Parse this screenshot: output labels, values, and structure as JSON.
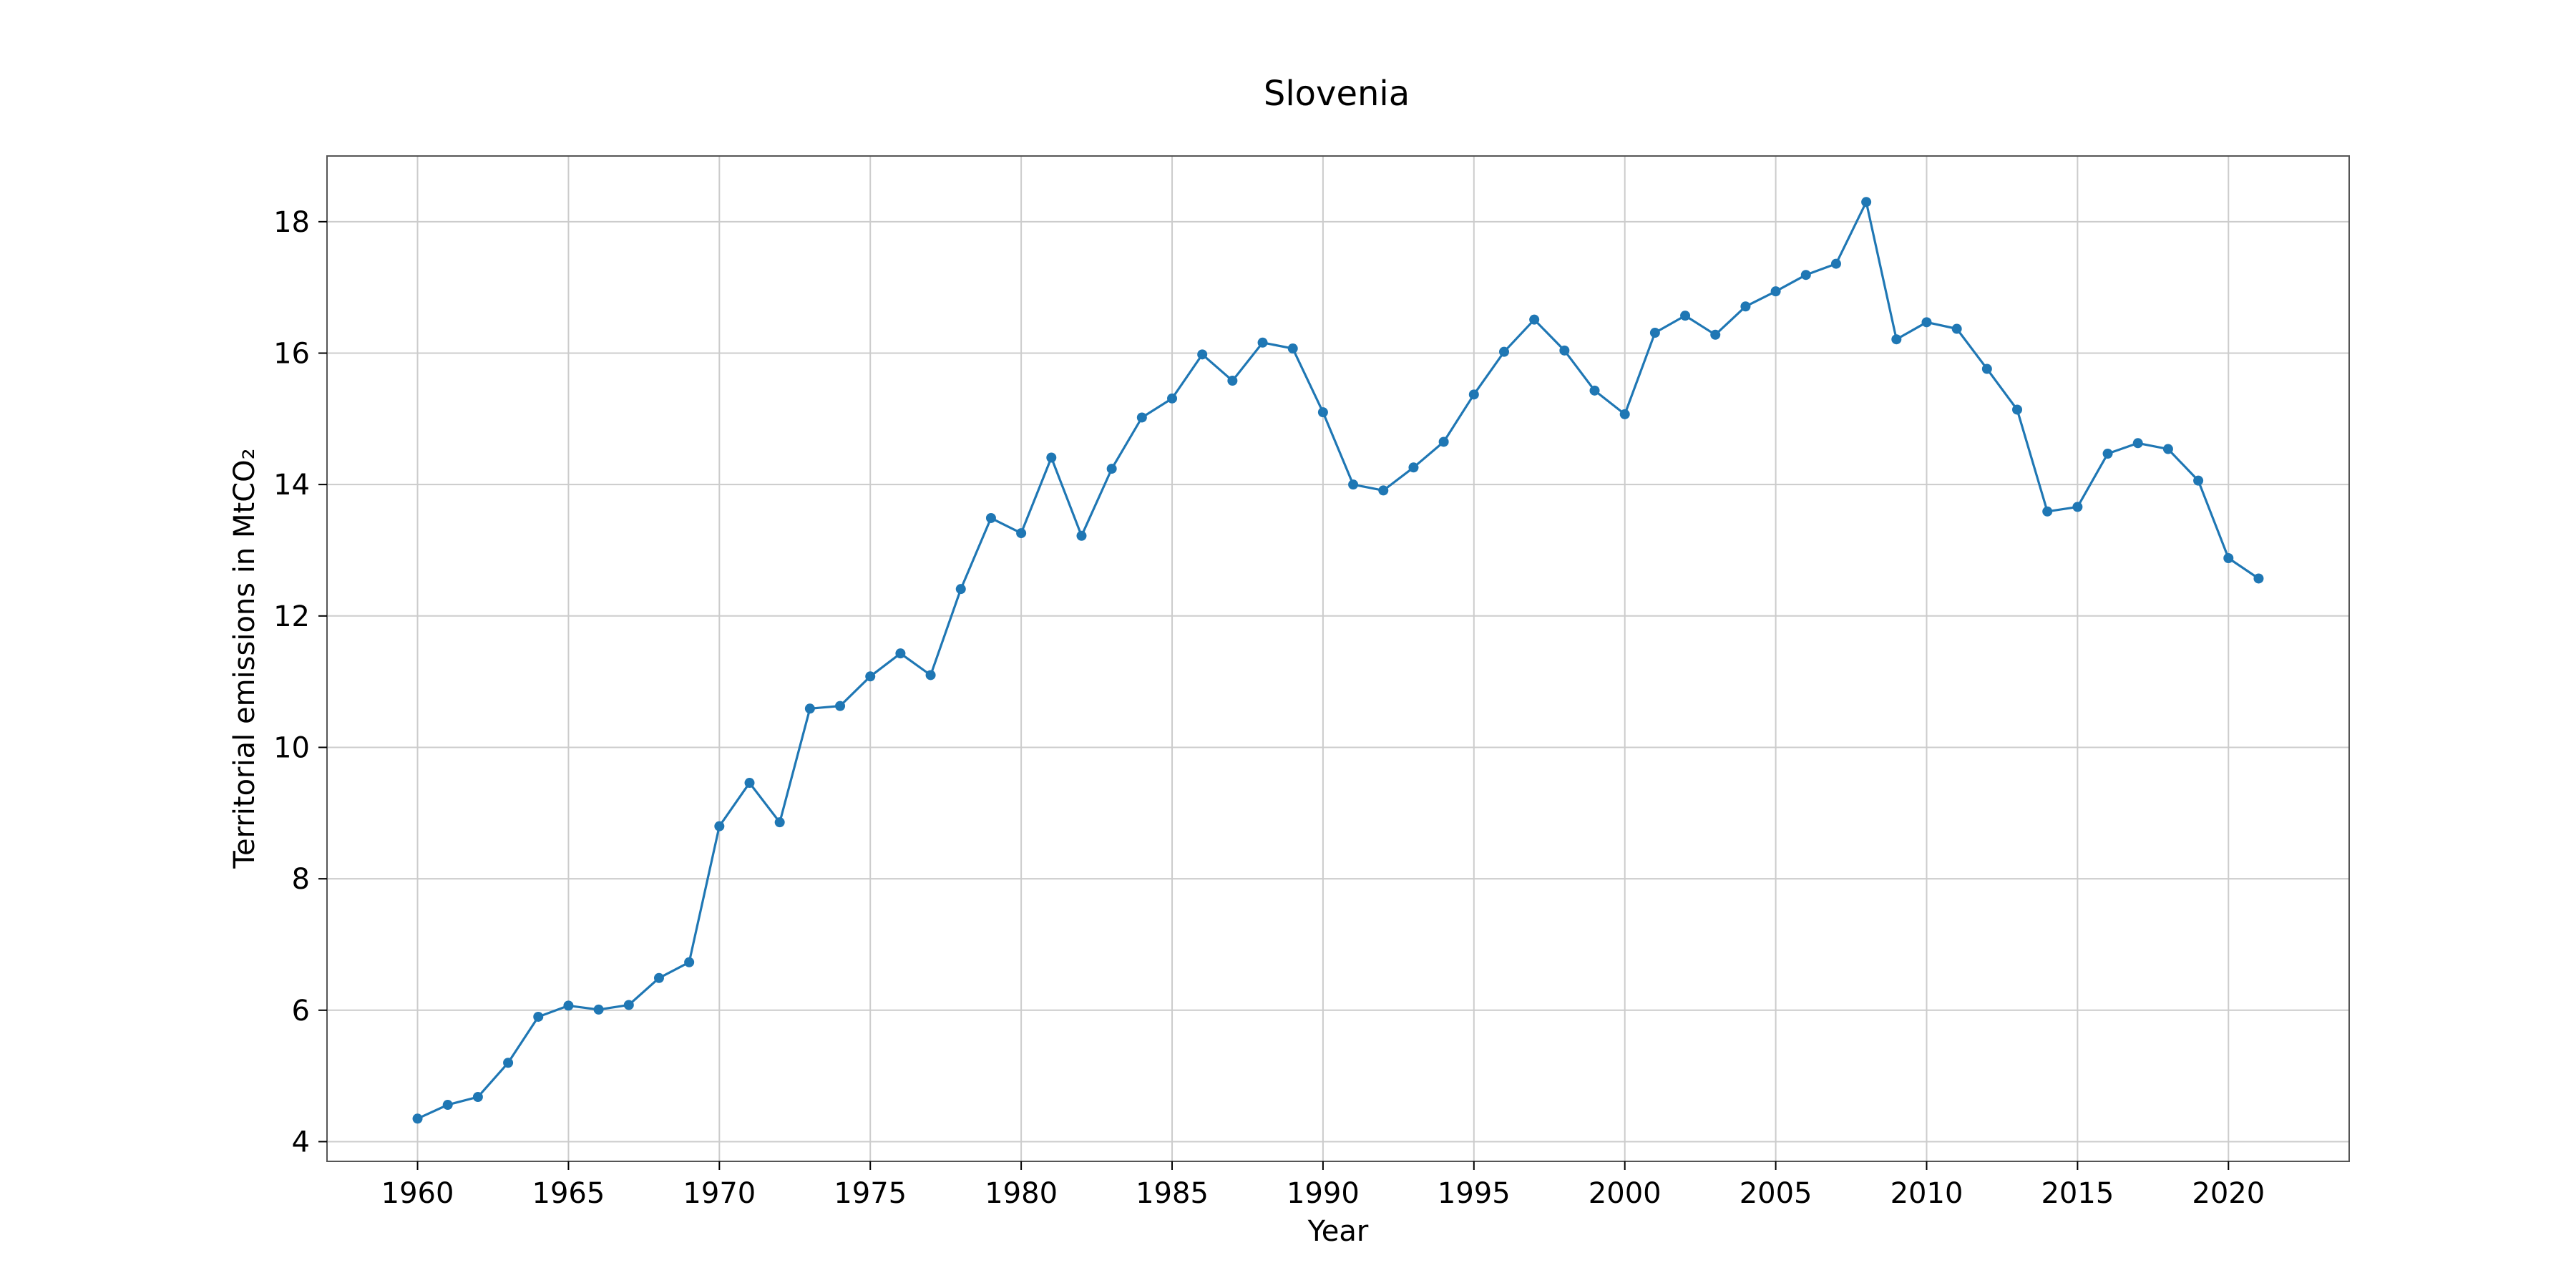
{
  "chart_data": {
    "type": "line",
    "title": "Slovenia",
    "xlabel": "Year",
    "ylabel": "Territorial emissions in MtCO₂",
    "xlim": [
      1957,
      2024
    ],
    "ylim": [
      3.7,
      19
    ],
    "xticks": [
      1960,
      1965,
      1970,
      1975,
      1980,
      1985,
      1990,
      1995,
      2000,
      2005,
      2010,
      2015,
      2020
    ],
    "yticks": [
      4,
      6,
      8,
      10,
      12,
      14,
      16,
      18
    ],
    "grid": true,
    "color": "#1f77b4",
    "marker": "circle",
    "x": [
      1960,
      1961,
      1962,
      1963,
      1964,
      1965,
      1966,
      1967,
      1968,
      1969,
      1970,
      1971,
      1972,
      1973,
      1974,
      1975,
      1976,
      1977,
      1978,
      1979,
      1980,
      1981,
      1982,
      1983,
      1984,
      1985,
      1986,
      1987,
      1988,
      1989,
      1990,
      1991,
      1992,
      1993,
      1994,
      1995,
      1996,
      1997,
      1998,
      1999,
      2000,
      2001,
      2002,
      2003,
      2004,
      2005,
      2006,
      2007,
      2008,
      2009,
      2010,
      2011,
      2012,
      2013,
      2014,
      2015,
      2016,
      2017,
      2018,
      2019,
      2020,
      2021
    ],
    "y": [
      4.35,
      4.56,
      4.68,
      5.2,
      5.9,
      6.07,
      6.01,
      6.08,
      6.49,
      6.73,
      8.8,
      9.46,
      8.86,
      10.59,
      10.63,
      11.08,
      11.43,
      11.1,
      12.41,
      13.49,
      13.26,
      14.41,
      13.22,
      14.24,
      15.02,
      15.31,
      15.98,
      15.58,
      16.16,
      16.07,
      15.1,
      14.0,
      13.91,
      14.26,
      14.65,
      15.37,
      16.02,
      16.51,
      16.04,
      15.43,
      15.07,
      16.31,
      16.57,
      16.28,
      16.71,
      16.94,
      17.19,
      17.36,
      18.3,
      16.21,
      16.47,
      16.37,
      15.76,
      15.14,
      13.59,
      13.66,
      14.47,
      14.63,
      14.54,
      14.06,
      12.88,
      12.57
    ]
  }
}
